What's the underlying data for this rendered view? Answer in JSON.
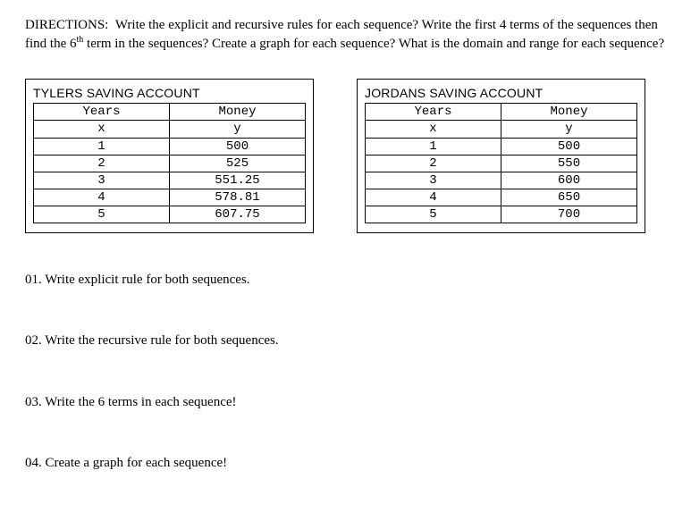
{
  "directions": {
    "heading": "DIRECTIONS:",
    "body_part1": "Write the explicit and recursive rules for each sequence?  Write the first 4 terms of the sequences then find the 6",
    "sup": "th",
    "body_part2": " term in the sequences?  Create a graph for each sequence?  What is the domain and range for each sequence?"
  },
  "tables": {
    "left": {
      "title": "TYLERS SAVING ACCOUNT",
      "header_col1": "Years",
      "header_col2": "Money",
      "sub_col1": "x",
      "sub_col2": "y",
      "rows": [
        [
          "1",
          "500"
        ],
        [
          "2",
          "525"
        ],
        [
          "3",
          "551.25"
        ],
        [
          "4",
          "578.81"
        ],
        [
          "5",
          "607.75"
        ]
      ],
      "font_family": "Courier New",
      "border_color": "#000000",
      "background_color": "#ffffff"
    },
    "right": {
      "title": "JORDANS SAVING ACCOUNT",
      "header_col1": "Years",
      "header_col2": "Money",
      "sub_col1": "x",
      "sub_col2": "y",
      "rows": [
        [
          "1",
          "500"
        ],
        [
          "2",
          "550"
        ],
        [
          "3",
          "600"
        ],
        [
          "4",
          "650"
        ],
        [
          "5",
          "700"
        ]
      ],
      "font_family": "Courier New",
      "border_color": "#000000",
      "background_color": "#ffffff"
    }
  },
  "questions": {
    "q1": "01.  Write explicit rule for both sequences.",
    "q2": "02.  Write the recursive rule for both sequences.",
    "q3": "03.  Write the 6 terms in each sequence!",
    "q4": "04.  Create a graph for each sequence!"
  }
}
